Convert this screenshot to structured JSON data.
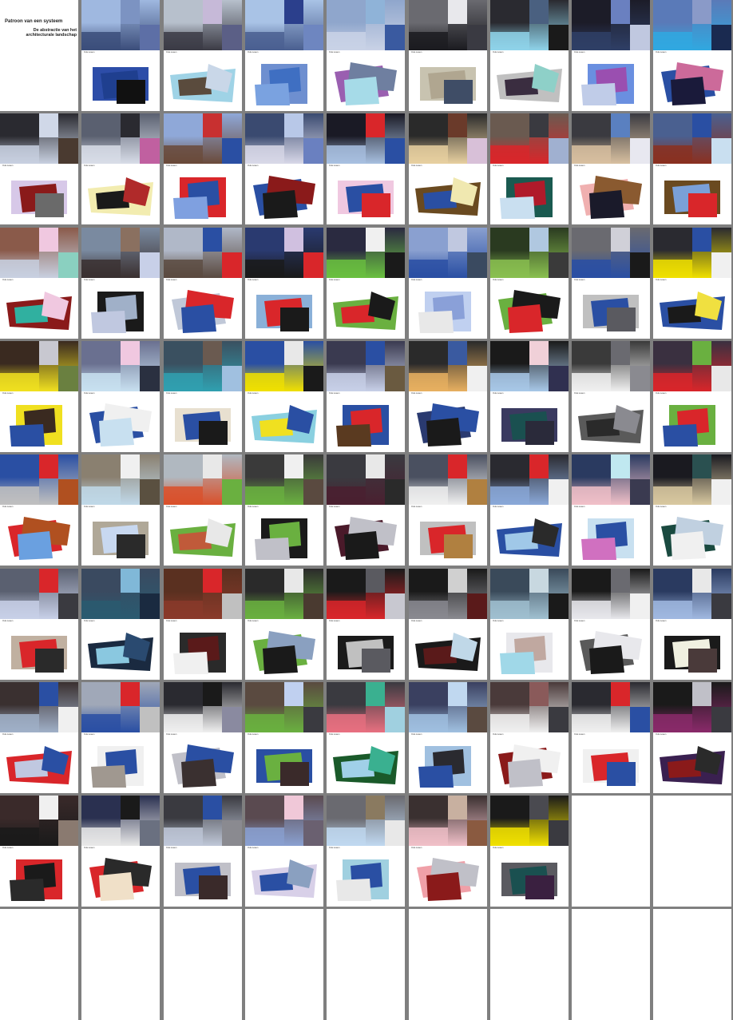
{
  "title_card": {
    "title": "Patroon van een systeem",
    "subtitle_line1": "De abstractie van het",
    "subtitle_line2": "architecturale landschap"
  },
  "palettes": {
    "sky": "#9fb4d6",
    "brick": "#6e4a3c",
    "dark": "#1a1a1f",
    "royal": "#2a4fa3",
    "red": "#d9262a",
    "pale": "#c9dff0"
  },
  "cards": [
    {
      "photo": [
        "#9fb8e0",
        "#3b4d7a",
        "#7c93c2",
        "#5d6fa6"
      ],
      "shapes": [
        "#1f3f8f",
        "#111111",
        "#2d4da8"
      ],
      "cap": "Oulu Lewen"
    },
    {
      "photo": [
        "#b7c0cc",
        "#3b3b45",
        "#c6b9d8",
        "#5b5f86"
      ],
      "shapes": [
        "#9fd3e6",
        "#5a4b3d",
        "#c9d7e8"
      ],
      "cap": "Oulu Lewen"
    },
    {
      "photo": [
        "#a9c3e6",
        "#4a5f90",
        "#2b3f8c",
        "#6e86c0"
      ],
      "shapes": [
        "#3f6fc2",
        "#6e8fd0",
        "#7aa2e0"
      ],
      "cap": "Oulu Lewen"
    },
    {
      "photo": [
        "#8fa6cc",
        "#c9d2e6",
        "#8fb3d8",
        "#3a5aa0"
      ],
      "shapes": [
        "#9a5fb0",
        "#a6dbe8",
        "#6f7fa0"
      ],
      "cap": "Oulu Lewen"
    },
    {
      "photo": [
        "#6a6a70",
        "#1b1b20",
        "#e8e8ec",
        "#3a3a42"
      ],
      "shapes": [
        "#b0a690",
        "#3f4d66",
        "#c8c3b0"
      ],
      "cap": "Oulu Lewen"
    },
    {
      "photo": [
        "#2a2a30",
        "#8fd3ea",
        "#4a6080",
        "#1a1a1a"
      ],
      "shapes": [
        "#c0c0c0",
        "#3a2d40",
        "#8ed0c8"
      ],
      "cap": "Oulu Lewen"
    },
    {
      "photo": [
        "#1c1c28",
        "#2f3f66",
        "#6a80c0",
        "#c0c8e0"
      ],
      "shapes": [
        "#9a4fb0",
        "#6a8fe0",
        "#c0cce8"
      ],
      "cap": "Oulu Lewen"
    },
    {
      "photo": [
        "#5a7ab8",
        "#30a8e0",
        "#8a9ac8",
        "#1a2a50"
      ],
      "shapes": [
        "#2a4fa3",
        "#1a1a3a",
        "#cc6a9a"
      ],
      "cap": "Oulu Lewen"
    },
    {
      "photo": [
        "#2a2a30",
        "#c8d0e0",
        "#d0d8e8",
        "#4a3a30"
      ],
      "shapes": [
        "#8a1a1a",
        "#6a6a6a",
        "#d7c8e8"
      ],
      "cap": "Oulu Lewen"
    },
    {
      "photo": [
        "#5a6070",
        "#d8dde8",
        "#2a2a30",
        "#c060a0"
      ],
      "shapes": [
        "#f2ecb0",
        "#1a1a1a",
        "#b02a2a"
      ],
      "cap": "Oulu Lewen"
    },
    {
      "photo": [
        "#8fa8d8",
        "#6a4a3a",
        "#c83030",
        "#2a4fa3"
      ],
      "shapes": [
        "#2a4fa3",
        "#d9262a",
        "#7fa0e0"
      ],
      "cap": "Oulu Lewen"
    },
    {
      "photo": [
        "#3a4a70",
        "#d8d8e8",
        "#b8c8e8",
        "#6a80c0"
      ],
      "shapes": [
        "#2a4fa3",
        "#1a1a1a",
        "#8a1a1a"
      ],
      "cap": "Oulu Lewen"
    },
    {
      "photo": [
        "#1a1a25",
        "#a8c0e0",
        "#d9262a",
        "#2a4fa3"
      ],
      "shapes": [
        "#2a4fa3",
        "#d9262a",
        "#f0c8e0"
      ],
      "cap": "Oulu Lewen"
    },
    {
      "photo": [
        "#2a2a2a",
        "#e8d0a0",
        "#6a3a2a",
        "#d8c0d8"
      ],
      "shapes": [
        "#6a4a20",
        "#2a4fa3",
        "#f0e8b0"
      ],
      "cap": "Oulu Lewen"
    },
    {
      "photo": [
        "#6a5a50",
        "#d9262a",
        "#3a3a40",
        "#a0b0d0"
      ],
      "shapes": [
        "#b01a2a",
        "#1a5a50",
        "#c9dff0"
      ],
      "cap": "Oulu Lewen"
    },
    {
      "photo": [
        "#3a3a40",
        "#d8c0a0",
        "#5a80c0",
        "#e8e8f0"
      ],
      "shapes": [
        "#f0b0b0",
        "#1a1a2a",
        "#8a5a30"
      ],
      "cap": "Oulu Lewen"
    },
    {
      "photo": [
        "#4a6090",
        "#8a3020",
        "#2a4fa3",
        "#c9dff0"
      ],
      "shapes": [
        "#7aa0d8",
        "#d9262a",
        "#6a4a20"
      ],
      "cap": "Oulu Lewen"
    },
    {
      "photo": [
        "#8a5a4a",
        "#c8d0e0",
        "#f0c8e0",
        "#8ad0c0"
      ],
      "shapes": [
        "#8a1a1a",
        "#30b0a0",
        "#f0c8e0"
      ],
      "cap": "Oulu Lewen"
    },
    {
      "photo": [
        "#7a8aa0",
        "#3a3030",
        "#8a7060",
        "#c8d0e8"
      ],
      "shapes": [
        "#a0b0c8",
        "#1a1a1a",
        "#c0c8e0"
      ],
      "cap": "Oulu Lewen"
    },
    {
      "photo": [
        "#b0b8c8",
        "#5a4a40",
        "#2a4fa3",
        "#d9262a"
      ],
      "shapes": [
        "#c0c8d8",
        "#2a4fa3",
        "#d9262a"
      ],
      "cap": "Oulu Lewen"
    },
    {
      "photo": [
        "#2a3a70",
        "#1a1a1a",
        "#d0c0e0",
        "#d9262a"
      ],
      "shapes": [
        "#d9262a",
        "#1a1a1a",
        "#8ab0d8"
      ],
      "cap": "Oulu Lewen"
    },
    {
      "photo": [
        "#2a2a40",
        "#6ac040",
        "#f0f0f0",
        "#1a1a1a"
      ],
      "shapes": [
        "#6ab040",
        "#d9262a",
        "#1a1a1a"
      ],
      "cap": "Oulu Lewen"
    },
    {
      "photo": [
        "#8aa0d0",
        "#2a4fa3",
        "#c0c8e0",
        "#3a4a60"
      ],
      "shapes": [
        "#8aa0d8",
        "#c0d0f0",
        "#e8e8e8"
      ],
      "cap": "Oulu Lewen"
    },
    {
      "photo": [
        "#2a3a20",
        "#8ac050",
        "#b0c8e0",
        "#3a3a3a"
      ],
      "shapes": [
        "#6ab040",
        "#d9262a",
        "#1a1a1a"
      ],
      "cap": "Oulu Lewen"
    },
    {
      "photo": [
        "#6a6a70",
        "#2a4fa3",
        "#d0d0d8",
        "#1a1a1a"
      ],
      "shapes": [
        "#2a4fa3",
        "#5a5a60",
        "#c0c0c0"
      ],
      "cap": "Oulu Lewen"
    },
    {
      "photo": [
        "#2a2a30",
        "#f0e000",
        "#2a4fa3",
        "#f0f0f0"
      ],
      "shapes": [
        "#2a4fa3",
        "#1a1a1a",
        "#f0e040"
      ],
      "cap": "Oulu Lewen"
    },
    {
      "photo": [
        "#3a2a20",
        "#f0e020",
        "#c8c8d0",
        "#6a8040"
      ],
      "shapes": [
        "#3a2a20",
        "#f0e020",
        "#2a4fa3"
      ],
      "cap": "Oulu Lewen"
    },
    {
      "photo": [
        "#6a7090",
        "#c8e0f0",
        "#f0c8e0",
        "#2a3040"
      ],
      "shapes": [
        "#2a4fa3",
        "#c8e0f0",
        "#f0f0f0"
      ],
      "cap": "Oulu Lewen"
    },
    {
      "photo": [
        "#3a5060",
        "#30a0b0",
        "#6a5a50",
        "#a0c0e0"
      ],
      "shapes": [
        "#2a4fa3",
        "#1a1a1a",
        "#e8e0d0"
      ],
      "cap": "Oulu Lewen"
    },
    {
      "photo": [
        "#2a4fa3",
        "#f0e000",
        "#e8e8e8",
        "#1a1a1a"
      ],
      "shapes": [
        "#8ad0e0",
        "#f0e020",
        "#2a4fa3"
      ],
      "cap": "Oulu Lewen"
    },
    {
      "photo": [
        "#3a3a50",
        "#c8d0e8",
        "#2a4fa3",
        "#6a5a40"
      ],
      "shapes": [
        "#d9262a",
        "#2a4fa3",
        "#5a3a20"
      ],
      "cap": "Oulu Lewen"
    },
    {
      "photo": [
        "#2a2a2a",
        "#e8b060",
        "#3a5aa0",
        "#f0f0f0"
      ],
      "shapes": [
        "#2a3a70",
        "#1a1a1a",
        "#2a4fa3"
      ],
      "cap": "Oulu Lewen"
    },
    {
      "photo": [
        "#1a1a1a",
        "#a8c8e8",
        "#f0d0d8",
        "#303050"
      ],
      "shapes": [
        "#1a5050",
        "#2a2a3a",
        "#3a3a60"
      ],
      "cap": "Oulu Lewen"
    },
    {
      "photo": [
        "#3a3a3a",
        "#f0f0f0",
        "#6a6a70",
        "#8a8a90"
      ],
      "shapes": [
        "#5a5a5a",
        "#2a2a2a",
        "#8a8a90"
      ],
      "cap": "Oulu Lewen"
    },
    {
      "photo": [
        "#3a3040",
        "#d9262a",
        "#6ab040",
        "#e8e8e8"
      ],
      "shapes": [
        "#d9262a",
        "#6ab040",
        "#2a4fa3"
      ],
      "cap": "Oulu Lewen"
    },
    {
      "photo": [
        "#2a4fa3",
        "#c0c0c0",
        "#d9262a",
        "#b05020"
      ],
      "shapes": [
        "#d9262a",
        "#6aa0e0",
        "#b05020"
      ],
      "cap": "Oulu Lewen"
    },
    {
      "photo": [
        "#8a8070",
        "#c0d8e8",
        "#f0f0f0",
        "#5a5040"
      ],
      "shapes": [
        "#c8d8f0",
        "#2a2a2a",
        "#b0a898"
      ],
      "cap": "Oulu Lewen"
    },
    {
      "photo": [
        "#b0b8c0",
        "#d9502a",
        "#e8e8e8",
        "#6ab040"
      ],
      "shapes": [
        "#6ab040",
        "#c05a3a",
        "#e8e8e8"
      ],
      "cap": "Oulu Lewen"
    },
    {
      "photo": [
        "#3a3a3a",
        "#6ab040",
        "#f0f0f0",
        "#5a4a40"
      ],
      "shapes": [
        "#6ab040",
        "#1a1a1a",
        "#c0c0c8"
      ],
      "cap": "Oulu Lewen"
    },
    {
      "photo": [
        "#3a3a40",
        "#4a2030",
        "#e8e8e8",
        "#2a2a2a"
      ],
      "shapes": [
        "#4a1a2a",
        "#1a1a1a",
        "#c0c0c8"
      ],
      "cap": "Oulu Lewen"
    },
    {
      "photo": [
        "#4a5060",
        "#f0f0f0",
        "#d9262a",
        "#b08040"
      ],
      "shapes": [
        "#d9262a",
        "#b08040",
        "#c0c0c0"
      ],
      "cap": "Oulu Lewen"
    },
    {
      "photo": [
        "#2a2a30",
        "#8aa8d8",
        "#d9262a",
        "#f0f0f0"
      ],
      "shapes": [
        "#2a4fa3",
        "#a0c8e8",
        "#2a2a2a"
      ],
      "cap": "Oulu Lewen"
    },
    {
      "photo": [
        "#2a3a60",
        "#f0c0c8",
        "#c0e8f0",
        "#3a3a50"
      ],
      "shapes": [
        "#2a4fa3",
        "#c8e0f0",
        "#d070c0"
      ],
      "cap": "Oulu Lewen"
    },
    {
      "photo": [
        "#1a1a20",
        "#d8c8a0",
        "#2a5050",
        "#f0f0f0"
      ],
      "shapes": [
        "#1a4a40",
        "#f0f0f0",
        "#c0d0e0"
      ],
      "cap": "Oulu Lewen"
    },
    {
      "photo": [
        "#5a6070",
        "#c8d0e8",
        "#d9262a",
        "#3a3a40"
      ],
      "shapes": [
        "#d9262a",
        "#2a2a2a",
        "#c0b0a0"
      ],
      "cap": "Oulu Lewen"
    },
    {
      "photo": [
        "#3a4a60",
        "#2a5a70",
        "#80b8d8",
        "#1a2a40"
      ],
      "shapes": [
        "#1a2a40",
        "#8ac8e0",
        "#2a4a70"
      ],
      "cap": "Oulu Lewen"
    },
    {
      "photo": [
        "#5a3020",
        "#8a3a2a",
        "#d9262a",
        "#c0c0c0"
      ],
      "shapes": [
        "#5a1a1a",
        "#2a2a2a",
        "#f0f0f0"
      ],
      "cap": "Oulu Lewen"
    },
    {
      "photo": [
        "#2a2a2a",
        "#6ab040",
        "#e8e8e8",
        "#4a3a30"
      ],
      "shapes": [
        "#6ab040",
        "#1a1a1a",
        "#8aa0c0"
      ],
      "cap": "Oulu Lewen"
    },
    {
      "photo": [
        "#1a1a1a",
        "#d9262a",
        "#5a5a60",
        "#c8c8d0"
      ],
      "shapes": [
        "#c0c0c0",
        "#5a5a60",
        "#1a1a1a"
      ],
      "cap": "Oulu Lewen"
    },
    {
      "photo": [
        "#1a1a1a",
        "#8a8a90",
        "#d0d0d0",
        "#5a1a1a"
      ],
      "shapes": [
        "#1a1a1a",
        "#5a1a1a",
        "#c0d8e8"
      ],
      "cap": "Oulu Lewen"
    },
    {
      "photo": [
        "#3a4a5a",
        "#a0c0d0",
        "#c8d8e0",
        "#1a1a1a"
      ],
      "shapes": [
        "#c0a8a0",
        "#e8e8ec",
        "#a0d8e8"
      ],
      "cap": "Oulu Lewen"
    },
    {
      "photo": [
        "#1a1a1a",
        "#e8e8ec",
        "#6a6a70",
        "#f0f0f0"
      ],
      "shapes": [
        "#5a5a5a",
        "#1a1a1a",
        "#e8e8ec"
      ],
      "cap": "Oulu Lewen"
    },
    {
      "photo": [
        "#2a3a60",
        "#a0b8e0",
        "#e8e8e8",
        "#3a3a40"
      ],
      "shapes": [
        "#f0f0e0",
        "#4a3a3a",
        "#1a1a1a"
      ],
      "cap": "Oulu Lewen"
    },
    {
      "photo": [
        "#3a3030",
        "#a0b0c8",
        "#2a4fa3",
        "#f0f0f0"
      ],
      "shapes": [
        "#d9262a",
        "#c0c8e0",
        "#2a4fa3"
      ],
      "cap": "Oulu Lewen"
    },
    {
      "photo": [
        "#a0a8b8",
        "#2a4fa3",
        "#d9262a",
        "#c0c0c0"
      ],
      "shapes": [
        "#2a4fa3",
        "#f0f0f0",
        "#a09890"
      ],
      "cap": "Oulu Lewen"
    },
    {
      "photo": [
        "#2a2a30",
        "#f0f0f0",
        "#1a1a1a",
        "#8a8aa0"
      ],
      "shapes": [
        "#c0c0c8",
        "#3a3030",
        "#2a4fa3"
      ],
      "cap": "Oulu Lewen"
    },
    {
      "photo": [
        "#5a4a40",
        "#6ab040",
        "#c0d0f0",
        "#3a3a40"
      ],
      "shapes": [
        "#6ab040",
        "#3a2a2a",
        "#2a4fa3"
      ],
      "cap": "Oulu Lewen"
    },
    {
      "photo": [
        "#3a3a40",
        "#e87080",
        "#3ab090",
        "#a0d0e0"
      ],
      "shapes": [
        "#1a5a2a",
        "#a0d0e8",
        "#3ab090"
      ],
      "cap": "Oulu Lewen"
    },
    {
      "photo": [
        "#3a4060",
        "#a0c0e0",
        "#c0d8f0",
        "#5a4a40"
      ],
      "shapes": [
        "#2a2a30",
        "#a0c0e0",
        "#2a4fa3"
      ],
      "cap": "Oulu Lewen"
    },
    {
      "photo": [
        "#4a3a3a",
        "#f0f0f0",
        "#8a5a5a",
        "#3a3a40"
      ],
      "shapes": [
        "#8a1a1a",
        "#c0c0c8",
        "#f0f0f0"
      ],
      "cap": "Oulu Lewen"
    },
    {
      "photo": [
        "#2a2a30",
        "#f0f0f0",
        "#d9262a",
        "#2a4fa3"
      ],
      "shapes": [
        "#d9262a",
        "#2a4fa3",
        "#f0f0f0"
      ],
      "cap": "Oulu Lewen"
    },
    {
      "photo": [
        "#1a1a1a",
        "#8a2a6a",
        "#c0c0c8",
        "#3a3a40"
      ],
      "shapes": [
        "#3a2050",
        "#8a1a1a",
        "#2a2a2a"
      ],
      "cap": "Oulu Lewen"
    },
    {
      "photo": [
        "#3a2a2a",
        "#1a1a1a",
        "#f0f0f0",
        "#8a7a70"
      ],
      "shapes": [
        "#1a1a1a",
        "#d9262a",
        "#2a2a2a"
      ],
      "cap": "Oulu Lewen"
    },
    {
      "photo": [
        "#2a3050",
        "#e8e8e8",
        "#1a1a1a",
        "#6a7080"
      ],
      "shapes": [
        "#d9262a",
        "#f0e0c8",
        "#2a2a2a"
      ],
      "cap": "Oulu Lewen"
    },
    {
      "photo": [
        "#3a3a40",
        "#c0c8d8",
        "#2a4fa3",
        "#8a8a90"
      ],
      "shapes": [
        "#2a4fa3",
        "#3a2a2a",
        "#c0c0c8"
      ],
      "cap": "Oulu Lewen"
    },
    {
      "photo": [
        "#5a4a50",
        "#8aa0d0",
        "#f0c8d8",
        "#6a6070"
      ],
      "shapes": [
        "#d8d0e8",
        "#2a4fa3",
        "#8aa0c0"
      ],
      "cap": "Oulu Lewen"
    },
    {
      "photo": [
        "#6a6a70",
        "#c0d8f0",
        "#8a7a60",
        "#e8e8e8"
      ],
      "shapes": [
        "#2a4fa3",
        "#a0d0e0",
        "#e8e8e8"
      ],
      "cap": "Oulu Lewen"
    },
    {
      "photo": [
        "#3a3030",
        "#f0c0c8",
        "#c8b0a0",
        "#8a5a40"
      ],
      "shapes": [
        "#f0a0a8",
        "#8a1a1a",
        "#c0c0c8"
      ],
      "cap": "Oulu Lewen"
    },
    {
      "photo": [
        "#1a1a1a",
        "#f0e000",
        "#4a4a50",
        "#3a3a40"
      ],
      "shapes": [
        "#1a5050",
        "#3a2040",
        "#5a5a60"
      ],
      "cap": "Oulu Lewen"
    }
  ]
}
